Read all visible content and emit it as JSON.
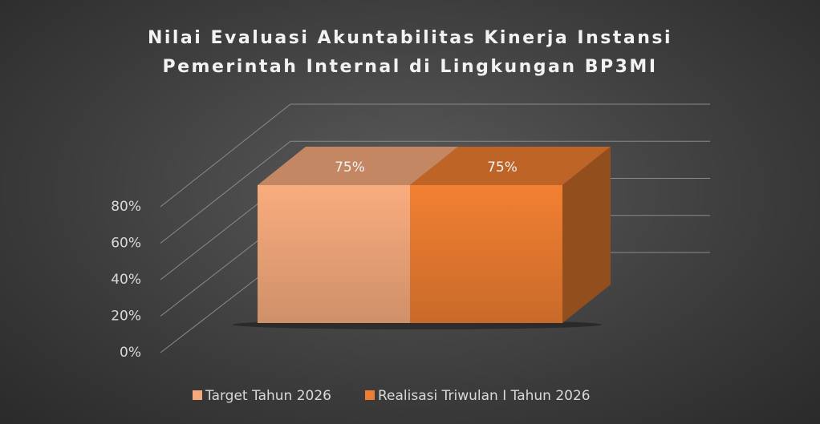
{
  "chart_data": {
    "type": "bar3d",
    "title": "Nilai Evaluasi Akuntabilitas Kinerja Instansi Pemerintah Internal di Lingkungan BP3MI",
    "categories": [
      null
    ],
    "series": [
      {
        "name": "Target Tahun 2026",
        "color": "#f4a97c",
        "values": [
          75
        ],
        "value_labels": [
          "75%"
        ]
      },
      {
        "name": "Realisasi Triwulan I Tahun 2026",
        "color": "#ed7d31",
        "values": [
          75
        ],
        "value_labels": [
          "75%"
        ]
      }
    ],
    "ylim": [
      0,
      80
    ],
    "yticks": [
      {
        "value": 0,
        "label": "0%"
      },
      {
        "value": 20,
        "label": "20%"
      },
      {
        "value": 40,
        "label": "40%"
      },
      {
        "value": 60,
        "label": "60%"
      },
      {
        "value": 80,
        "label": "80%"
      }
    ],
    "grid": true,
    "legend": "bottom"
  }
}
